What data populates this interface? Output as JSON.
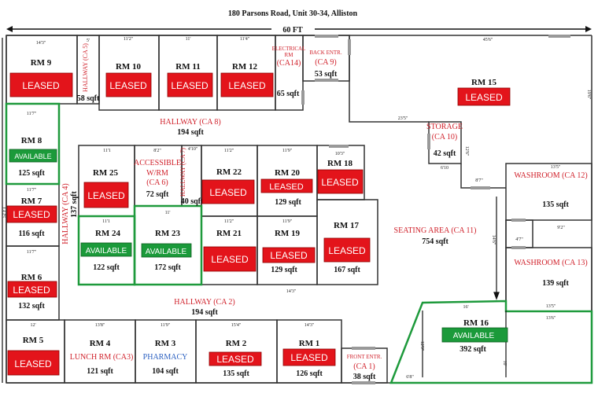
{
  "header": {
    "address": "180 Parsons Road, Unit 30-34, Alliston",
    "width_label": "60 FT",
    "side_label": "52 FT"
  },
  "colors": {
    "leased": "#e3141b",
    "available": "#1b9a3a",
    "common_area_text": "#d0202a",
    "pharmacy_text": "#2a5fc0"
  },
  "status": {
    "leased": "LEASED",
    "available": "AVAILABLE"
  },
  "rooms": {
    "rm1": {
      "name": "RM 1",
      "status": "LEASED",
      "area": "126 sqft",
      "width": "14'3\""
    },
    "rm2": {
      "name": "RM 2",
      "status": "LEASED",
      "area": "135 sqft",
      "width": "15'4\""
    },
    "rm3": {
      "name": "RM 3",
      "use": "PHARMACY",
      "area": "104 sqft",
      "width": "11'9\""
    },
    "rm4": {
      "name": "RM 4",
      "use": "LUNCH RM (CA3)",
      "area": "121 sqft",
      "width": "13'8\""
    },
    "rm5": {
      "name": "RM 5",
      "status": "LEASED",
      "width": "12'"
    },
    "rm6": {
      "name": "RM 6",
      "status": "LEASED",
      "area": "132 sqft",
      "width": "11'7\""
    },
    "rm7": {
      "name": "RM 7",
      "status": "LEASED",
      "area": "116 sqft",
      "width": "11'7\""
    },
    "rm8": {
      "name": "RM 8",
      "status": "AVAILABLE",
      "area": "125 sqft",
      "width": "11'7\""
    },
    "rm9": {
      "name": "RM 9",
      "status": "LEASED",
      "width": "14'3\""
    },
    "rm10": {
      "name": "RM 10",
      "status": "LEASED",
      "width": "11'2\""
    },
    "rm11": {
      "name": "RM 11",
      "status": "LEASED",
      "width": "11'"
    },
    "rm12": {
      "name": "RM 12",
      "status": "LEASED",
      "width": "11'4\""
    },
    "rm15": {
      "name": "RM 15",
      "status": "LEASED",
      "width": "45'6\""
    },
    "rm16": {
      "name": "RM 16",
      "status": "AVAILABLE",
      "area": "392 sqft",
      "width": "16'"
    },
    "rm17": {
      "name": "RM 17",
      "status": "LEASED",
      "area": "167 sqft"
    },
    "rm18": {
      "name": "RM 18",
      "status": "LEASED",
      "width": "10'3\""
    },
    "rm19": {
      "name": "RM 19",
      "status": "LEASED",
      "area": "129 sqft",
      "width": "11'9\""
    },
    "rm20": {
      "name": "RM 20",
      "status": "LEASED",
      "area": "129 sqft",
      "width": "11'9\""
    },
    "rm21": {
      "name": "RM 21",
      "status": "LEASED",
      "width": "11'2\""
    },
    "rm22": {
      "name": "RM 22",
      "status": "LEASED",
      "width": "11'2\""
    },
    "rm23": {
      "name": "RM 23",
      "status": "AVAILABLE",
      "area": "172 sqft",
      "width": "11'"
    },
    "rm24": {
      "name": "RM 24",
      "status": "AVAILABLE",
      "area": "122 sqft",
      "width": "11'1"
    },
    "rm25": {
      "name": "RM 25",
      "status": "LEASED",
      "width": "11'1"
    }
  },
  "common_areas": {
    "ca1": {
      "line1": "FRONT ENTR.",
      "line2": "(CA 1)",
      "area": "38 sqft"
    },
    "ca2": {
      "name": "HALLWAY (CA 2)",
      "area": "194 sqft"
    },
    "ca4": {
      "name": "HALLWAY (CA 4)",
      "area": "137 sqft"
    },
    "ca5": {
      "name": "HALLWAY (CA 5)",
      "area": "58 sqft",
      "width": "5'"
    },
    "ca6": {
      "line1": "ACCESSIBLE",
      "line2": "W/RM",
      "line3": "(CA 6)",
      "area": "72 sqft",
      "width": "8'2\""
    },
    "ca7": {
      "name": "HALLWAY (CA 7)",
      "area": "40 sqft",
      "width": "4'10\""
    },
    "ca8": {
      "name": "HALLWAY (CA 8)",
      "area": "194 sqft"
    },
    "ca9": {
      "line1": "BACK ENTR.",
      "line2": "(CA 9)",
      "area": "53 sqft"
    },
    "ca10": {
      "line1": "STORAGE",
      "line2": "(CA 10)",
      "area": "42 sqft",
      "width": "6'10"
    },
    "ca11": {
      "name": "SEATING AREA (CA 11)",
      "area": "754 sqft"
    },
    "ca12": {
      "name": "WASHROOM (CA 12)",
      "area": "135 sqft",
      "width": "13'5\""
    },
    "ca13": {
      "name": "WASHROOM (CA 13)",
      "area": "139 sqft",
      "width": "13'5\""
    },
    "ca14": {
      "line1": "ELECTRICAL",
      "line2": "RM",
      "line3": "(CA14)",
      "area": "65 sqft"
    }
  },
  "dimensions": {
    "d23_5": "23'5\"",
    "d8_7": "8'7\"",
    "d9_2": "9'2\"",
    "d4_7": "4'7\"",
    "d13_6": "13'6\"",
    "d6_8": "6'8\"",
    "d14_3": "14'3\"",
    "d14_6": "14'6\"",
    "d12_9": "12'9\"",
    "d10": "10'",
    "d12_6": "12'6\"",
    "d19_6": "19'6\""
  }
}
